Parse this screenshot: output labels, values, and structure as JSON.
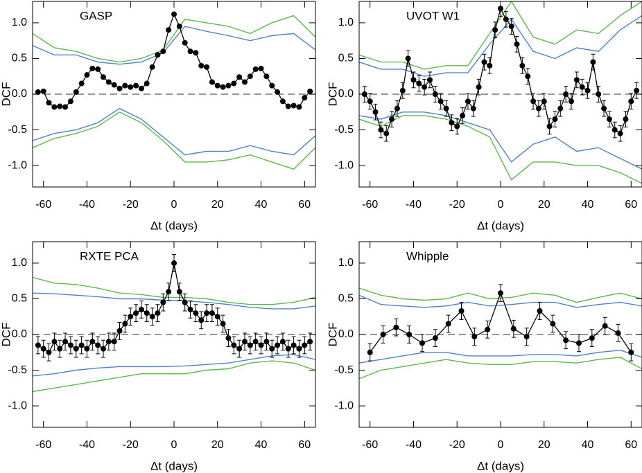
{
  "chart_data": [
    {
      "type": "line",
      "title": "GASP",
      "xlabel": "Δt (days)",
      "ylabel": "DCF",
      "xlim": [
        -65,
        65
      ],
      "ylim": [
        -1.3,
        1.3
      ],
      "xticks": [
        -60,
        -40,
        -20,
        0,
        20,
        40,
        60
      ],
      "yticks": [
        {
          "value": -1,
          "label": "-1.0"
        },
        -0.5,
        {
          "value": 0,
          "label": "0.0"
        },
        0.5,
        {
          "value": 1,
          "label": "1.0"
        }
      ],
      "series": [
        {
          "color": "#000000",
          "markers": true,
          "x": [
            -62.5,
            -60,
            -57.5,
            -55,
            -52.5,
            -50,
            -47.5,
            -45,
            -42.5,
            -40,
            -37.5,
            -35,
            -32.5,
            -30,
            -27.5,
            -25,
            -22.5,
            -20,
            -17.5,
            -15,
            -12.5,
            -10,
            -7.5,
            -5,
            -2.5,
            0,
            2.5,
            5,
            7.5,
            10,
            12.5,
            15,
            17.5,
            20,
            22.5,
            25,
            27.5,
            30,
            32.5,
            35,
            37.5,
            40,
            42.5,
            45,
            47.5,
            50,
            52.5,
            55,
            57.5,
            60,
            62.5
          ],
          "values": [
            0.03,
            0.04,
            -0.12,
            -0.18,
            -0.17,
            -0.18,
            -0.1,
            0.03,
            0.15,
            0.27,
            0.36,
            0.35,
            0.24,
            0.17,
            0.13,
            0.08,
            0.12,
            0.1,
            0.12,
            0.08,
            0.15,
            0.38,
            0.55,
            0.6,
            0.9,
            1.12,
            0.95,
            0.72,
            0.6,
            0.58,
            0.4,
            0.38,
            0.17,
            0.12,
            0.1,
            0.12,
            0.15,
            0.24,
            0.17,
            0.25,
            0.35,
            0.36,
            0.25,
            0.12,
            0.03,
            -0.1,
            -0.17,
            -0.16,
            -0.18,
            -0.05,
            0.04
          ]
        },
        {
          "color": "#4f81c7",
          "x": [
            -65,
            -55,
            -45,
            -35,
            -25,
            -15,
            -5,
            5,
            15,
            25,
            35,
            45,
            55,
            65
          ],
          "values": [
            0.68,
            0.55,
            0.55,
            0.45,
            0.42,
            0.45,
            0.58,
            0.95,
            0.88,
            0.82,
            0.75,
            0.82,
            0.85,
            0.62
          ]
        },
        {
          "color": "#5cb84a",
          "x": [
            -65,
            -55,
            -45,
            -35,
            -25,
            -15,
            -5,
            5,
            15,
            25,
            35,
            45,
            55,
            65
          ],
          "values": [
            0.85,
            0.65,
            0.6,
            0.5,
            0.45,
            0.5,
            0.62,
            1.05,
            1.0,
            0.95,
            0.85,
            1.0,
            1.1,
            0.8
          ]
        },
        {
          "color": "#4f81c7",
          "x": [
            -65,
            -55,
            -45,
            -35,
            -25,
            -15,
            -5,
            5,
            15,
            25,
            35,
            45,
            55,
            65
          ],
          "values": [
            -0.65,
            -0.55,
            -0.5,
            -0.4,
            -0.2,
            -0.35,
            -0.6,
            -0.85,
            -0.8,
            -0.8,
            -0.72,
            -0.8,
            -0.85,
            -0.58
          ]
        },
        {
          "color": "#5cb84a",
          "x": [
            -65,
            -55,
            -45,
            -35,
            -25,
            -15,
            -5,
            5,
            15,
            25,
            35,
            45,
            55,
            65
          ],
          "values": [
            -0.75,
            -0.62,
            -0.55,
            -0.45,
            -0.25,
            -0.4,
            -0.65,
            -0.95,
            -0.95,
            -0.92,
            -0.85,
            -0.95,
            -1.05,
            -0.75
          ]
        }
      ]
    },
    {
      "type": "line",
      "title": "UVOT W1",
      "xlabel": "Δt (days)",
      "ylabel": "DCF",
      "xlim": [
        -65,
        65
      ],
      "ylim": [
        -1.3,
        1.3
      ],
      "xticks": [
        -60,
        -40,
        -20,
        0,
        20,
        40,
        60
      ],
      "yticks": [
        {
          "value": -1,
          "label": "-1.0"
        },
        -0.5,
        {
          "value": 0,
          "label": "0.0"
        },
        0.5,
        {
          "value": 1,
          "label": "1.0"
        }
      ],
      "series": [
        {
          "color": "#000000",
          "markers": true,
          "error": 0.11,
          "x": [
            -62.5,
            -60,
            -57.5,
            -55,
            -52.5,
            -50,
            -47.5,
            -45,
            -42.5,
            -40,
            -37.5,
            -35,
            -32.5,
            -30,
            -27.5,
            -25,
            -22.5,
            -20,
            -17.5,
            -15,
            -12.5,
            -10,
            -7.5,
            -5,
            -2.5,
            0,
            2.5,
            5,
            7.5,
            10,
            12.5,
            15,
            17.5,
            20,
            22.5,
            25,
            27.5,
            30,
            32.5,
            35,
            37.5,
            40,
            42.5,
            45,
            47.5,
            50,
            52.5,
            55,
            57.5,
            60,
            62.5
          ],
          "values": [
            0.0,
            -0.1,
            -0.25,
            -0.5,
            -0.55,
            -0.35,
            -0.2,
            0.05,
            0.5,
            0.2,
            0.15,
            0.1,
            0.2,
            0.0,
            -0.1,
            -0.2,
            -0.4,
            -0.45,
            -0.3,
            -0.1,
            -0.2,
            0.1,
            0.45,
            0.4,
            0.9,
            1.2,
            1.05,
            0.95,
            0.7,
            0.4,
            0.25,
            -0.1,
            -0.2,
            -0.1,
            -0.45,
            -0.35,
            -0.2,
            0.0,
            -0.1,
            0.2,
            0.1,
            0.05,
            0.45,
            0.0,
            -0.2,
            -0.35,
            -0.5,
            -0.55,
            -0.35,
            -0.1,
            0.05
          ]
        },
        {
          "color": "#4f81c7",
          "x": [
            -65,
            -55,
            -45,
            -35,
            -25,
            -15,
            -5,
            5,
            15,
            25,
            35,
            45,
            55,
            65
          ],
          "values": [
            0.45,
            0.35,
            0.35,
            0.25,
            0.3,
            0.3,
            0.7,
            1.05,
            0.6,
            0.5,
            0.65,
            0.6,
            0.9,
            1.1
          ]
        },
        {
          "color": "#5cb84a",
          "x": [
            -65,
            -55,
            -45,
            -35,
            -25,
            -15,
            -5,
            5,
            15,
            25,
            35,
            45,
            55,
            65
          ],
          "values": [
            0.55,
            0.45,
            0.45,
            0.35,
            0.4,
            0.4,
            0.85,
            1.3,
            0.8,
            0.7,
            0.9,
            0.85,
            1.1,
            1.3
          ]
        },
        {
          "color": "#4f81c7",
          "x": [
            -65,
            -55,
            -45,
            -35,
            -25,
            -15,
            -5,
            5,
            15,
            25,
            35,
            45,
            55,
            65
          ],
          "values": [
            -0.3,
            -0.35,
            -0.25,
            -0.25,
            -0.3,
            -0.4,
            -0.5,
            -0.95,
            -0.7,
            -0.6,
            -0.8,
            -0.75,
            -0.9,
            -1.05
          ]
        },
        {
          "color": "#5cb84a",
          "x": [
            -65,
            -55,
            -45,
            -35,
            -25,
            -15,
            -5,
            5,
            15,
            25,
            35,
            45,
            55,
            65
          ],
          "values": [
            -0.35,
            -0.45,
            -0.3,
            -0.3,
            -0.35,
            -0.45,
            -0.6,
            -1.2,
            -0.95,
            -0.95,
            -1.0,
            -1.0,
            -1.1,
            -1.25
          ]
        }
      ]
    },
    {
      "type": "line",
      "title": "RXTE PCA",
      "xlabel": "Δt (days)",
      "ylabel": "DCF",
      "xlim": [
        -65,
        65
      ],
      "ylim": [
        -1.3,
        1.3
      ],
      "xticks": [
        -60,
        -40,
        -20,
        0,
        20,
        40,
        60
      ],
      "yticks": [
        {
          "value": -1,
          "label": "-1.0"
        },
        -0.5,
        {
          "value": 0,
          "label": "0.0"
        },
        0.5,
        {
          "value": 1,
          "label": "1.0"
        }
      ],
      "series": [
        {
          "color": "#000000",
          "markers": true,
          "error": 0.12,
          "x": [
            -62.5,
            -60,
            -57.5,
            -55,
            -52.5,
            -50,
            -47.5,
            -45,
            -42.5,
            -40,
            -37.5,
            -35,
            -32.5,
            -30,
            -27.5,
            -25,
            -22.5,
            -20,
            -17.5,
            -15,
            -12.5,
            -10,
            -7.5,
            -5,
            -2.5,
            0,
            2.5,
            5,
            7.5,
            10,
            12.5,
            15,
            17.5,
            20,
            22.5,
            25,
            27.5,
            30,
            32.5,
            35,
            37.5,
            40,
            42.5,
            45,
            47.5,
            50,
            52.5,
            55,
            57.5,
            60,
            62.5
          ],
          "values": [
            -0.15,
            -0.2,
            -0.25,
            -0.1,
            -0.2,
            -0.1,
            -0.15,
            -0.2,
            -0.15,
            -0.2,
            -0.1,
            -0.15,
            -0.2,
            -0.1,
            -0.1,
            0.05,
            0.15,
            0.25,
            0.3,
            0.35,
            0.3,
            0.25,
            0.3,
            0.45,
            0.6,
            1.0,
            0.6,
            0.45,
            0.35,
            0.3,
            0.2,
            0.3,
            0.3,
            0.25,
            0.15,
            -0.05,
            -0.15,
            -0.2,
            -0.1,
            -0.15,
            -0.1,
            -0.15,
            -0.1,
            -0.2,
            -0.15,
            -0.1,
            -0.2,
            -0.15,
            -0.2,
            -0.15,
            -0.1
          ]
        },
        {
          "color": "#4f81c7",
          "x": [
            -65,
            -55,
            -45,
            -35,
            -25,
            -15,
            -5,
            5,
            15,
            25,
            35,
            45,
            55,
            65
          ],
          "values": [
            0.58,
            0.57,
            0.55,
            0.53,
            0.5,
            0.5,
            0.48,
            0.47,
            0.45,
            0.42,
            0.38,
            0.36,
            0.36,
            0.4
          ]
        },
        {
          "color": "#5cb84a",
          "x": [
            -65,
            -55,
            -45,
            -35,
            -25,
            -15,
            -5,
            5,
            15,
            25,
            35,
            45,
            55,
            65
          ],
          "values": [
            0.8,
            0.72,
            0.7,
            0.65,
            0.58,
            0.56,
            0.52,
            0.52,
            0.5,
            0.45,
            0.42,
            0.42,
            0.45,
            0.52
          ]
        },
        {
          "color": "#4f81c7",
          "x": [
            -65,
            -55,
            -45,
            -35,
            -25,
            -15,
            -5,
            5,
            15,
            25,
            35,
            45,
            55,
            65
          ],
          "values": [
            -0.58,
            -0.55,
            -0.5,
            -0.47,
            -0.45,
            -0.45,
            -0.45,
            -0.44,
            -0.42,
            -0.4,
            -0.35,
            -0.3,
            -0.28,
            -0.35
          ]
        },
        {
          "color": "#5cb84a",
          "x": [
            -65,
            -55,
            -45,
            -35,
            -25,
            -15,
            -5,
            5,
            15,
            25,
            35,
            45,
            55,
            65
          ],
          "values": [
            -0.8,
            -0.75,
            -0.7,
            -0.65,
            -0.6,
            -0.55,
            -0.55,
            -0.55,
            -0.5,
            -0.48,
            -0.4,
            -0.37,
            -0.4,
            -0.5
          ]
        }
      ]
    },
    {
      "type": "line",
      "title": "Whipple",
      "xlabel": "Δt (days)",
      "ylabel": "DCF",
      "xlim": [
        -65,
        65
      ],
      "ylim": [
        -1.3,
        1.3
      ],
      "xticks": [
        -60,
        -40,
        -20,
        0,
        20,
        40,
        60
      ],
      "yticks": [
        {
          "value": -1,
          "label": "-1.0"
        },
        -0.5,
        {
          "value": 0,
          "label": "0.0"
        },
        0.5,
        {
          "value": 1,
          "label": "1.0"
        }
      ],
      "series": [
        {
          "color": "#000000",
          "markers": true,
          "error": 0.12,
          "x": [
            -60,
            -54,
            -48,
            -42,
            -36,
            -30,
            -24,
            -18,
            -12,
            -6,
            0,
            6,
            12,
            18,
            24,
            30,
            36,
            42,
            48,
            54,
            60
          ],
          "values": [
            -0.25,
            0.0,
            0.1,
            0.0,
            -0.12,
            -0.05,
            0.15,
            0.33,
            -0.03,
            0.07,
            0.58,
            0.08,
            -0.03,
            0.33,
            0.15,
            -0.08,
            -0.12,
            -0.05,
            0.12,
            0.02,
            -0.25
          ]
        },
        {
          "color": "#4f81c7",
          "x": [
            -65,
            -55,
            -45,
            -35,
            -25,
            -15,
            -5,
            5,
            15,
            25,
            35,
            45,
            55,
            65
          ],
          "values": [
            0.55,
            0.42,
            0.4,
            0.38,
            0.4,
            0.45,
            0.4,
            0.42,
            0.45,
            0.45,
            0.38,
            0.42,
            0.45,
            0.4
          ]
        },
        {
          "color": "#5cb84a",
          "x": [
            -65,
            -55,
            -45,
            -35,
            -25,
            -15,
            -5,
            5,
            15,
            25,
            35,
            45,
            55,
            65
          ],
          "values": [
            0.65,
            0.55,
            0.5,
            0.48,
            0.5,
            0.58,
            0.5,
            0.52,
            0.58,
            0.55,
            0.45,
            0.52,
            0.58,
            0.5
          ]
        },
        {
          "color": "#4f81c7",
          "x": [
            -65,
            -55,
            -45,
            -35,
            -25,
            -15,
            -5,
            5,
            15,
            25,
            35,
            45,
            55,
            65
          ],
          "values": [
            -0.4,
            -0.35,
            -0.3,
            -0.25,
            -0.25,
            -0.3,
            -0.3,
            -0.3,
            -0.28,
            -0.28,
            -0.3,
            -0.25,
            -0.22,
            -0.32
          ]
        },
        {
          "color": "#5cb84a",
          "x": [
            -65,
            -55,
            -45,
            -35,
            -25,
            -15,
            -5,
            5,
            15,
            25,
            35,
            45,
            55,
            65
          ],
          "values": [
            -0.62,
            -0.5,
            -0.45,
            -0.4,
            -0.35,
            -0.4,
            -0.42,
            -0.42,
            -0.38,
            -0.38,
            -0.4,
            -0.35,
            -0.32,
            -0.48
          ]
        }
      ]
    }
  ]
}
